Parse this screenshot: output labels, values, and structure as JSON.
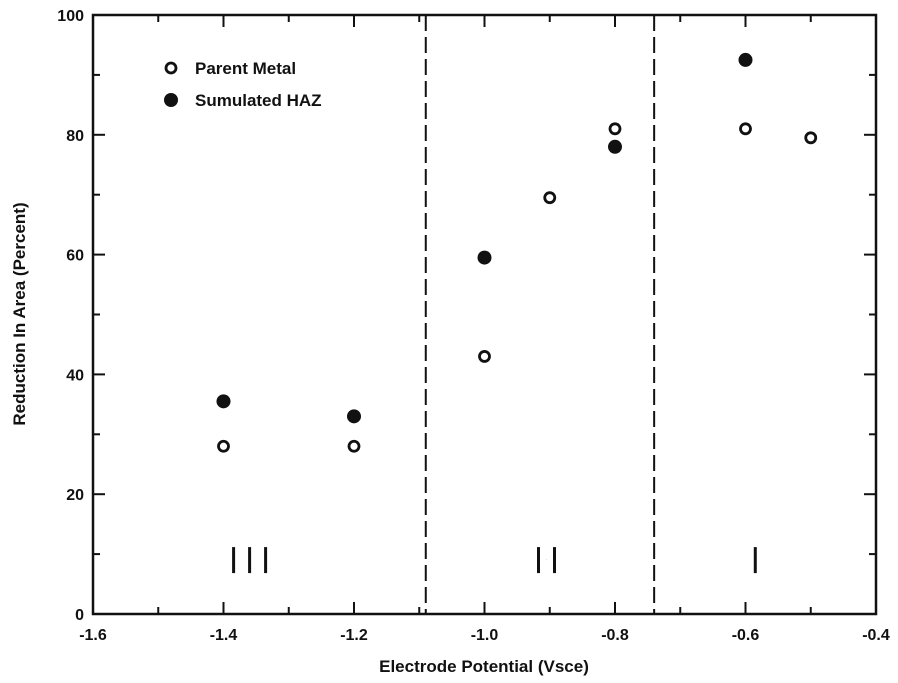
{
  "chart_data": {
    "type": "scatter",
    "xlabel": "Electrode Potential  (Vsce)",
    "ylabel": "Reduction In Area  (Percent)",
    "xlim": [
      -1.6,
      -0.4
    ],
    "ylim": [
      0,
      100
    ],
    "xticks": [
      -1.6,
      -1.4,
      -1.2,
      -1.0,
      -0.8,
      -0.6,
      -0.4
    ],
    "xtick_labels": [
      "-1.6",
      "-1.4",
      "-1.2",
      "-1.0",
      "-0.8",
      "-0.6",
      "-0.4"
    ],
    "yticks": [
      0,
      20,
      40,
      60,
      80,
      100
    ],
    "ytick_labels": [
      "0",
      "20",
      "40",
      "60",
      "80",
      "100"
    ],
    "grid": false,
    "legend_position": "top-left",
    "series": [
      {
        "name": "Parent Metal",
        "marker": "open-circle",
        "color": "#111111",
        "x": [
          -1.4,
          -1.2,
          -1.0,
          -0.9,
          -0.8,
          -0.6,
          -0.5
        ],
        "y": [
          28,
          28,
          43,
          69.5,
          81,
          81,
          79.5
        ]
      },
      {
        "name": "Sumulated HAZ",
        "marker": "filled-circle",
        "color": "#111111",
        "x": [
          -1.4,
          -1.2,
          -1.0,
          -0.8,
          -0.6
        ],
        "y": [
          35.5,
          33,
          59.5,
          78,
          92.5
        ]
      }
    ],
    "vertical_dashed_lines": [
      -1.09,
      -0.74
    ],
    "zone_labels": [
      {
        "text": "III",
        "x": -1.36,
        "y": 9
      },
      {
        "text": "II",
        "x": -0.905,
        "y": 9
      },
      {
        "text": "I",
        "x": -0.585,
        "y": 9
      }
    ]
  }
}
